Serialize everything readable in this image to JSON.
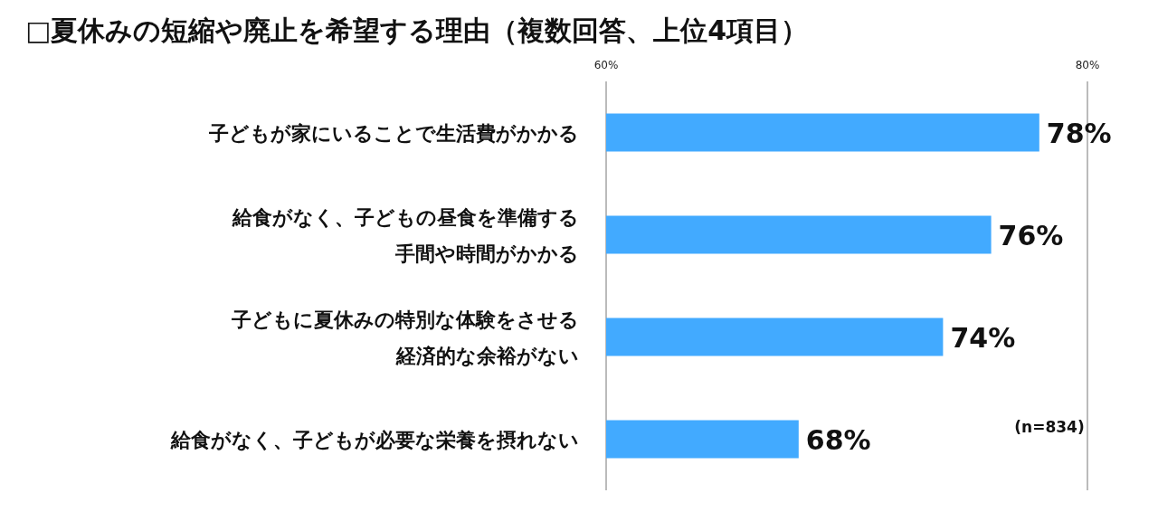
{
  "chart_data": {
    "type": "bar",
    "orientation": "horizontal",
    "title": "□夏休みの短縮や廃止を希望する理由（複数回答、上位4項目）",
    "categories": [
      "子どもが家にいることで生活費がかかる",
      "給食がなく、子どもの昼食を準備する手間や時間がかかる",
      "子どもに夏休みの特別な体験をさせる経済的な余裕がない",
      "給食がなく、子どもが必要な栄養を摂れない"
    ],
    "values": [
      78,
      76,
      74,
      68
    ],
    "value_labels": [
      "78%",
      "76%",
      "74%",
      "68%"
    ],
    "color": "#42aaff",
    "xlim": [
      60,
      80
    ],
    "xticks": [
      {
        "value": 60,
        "label": "60%"
      },
      {
        "value": 80,
        "label": "80%"
      }
    ],
    "annotations": [
      "(n=834)"
    ]
  }
}
